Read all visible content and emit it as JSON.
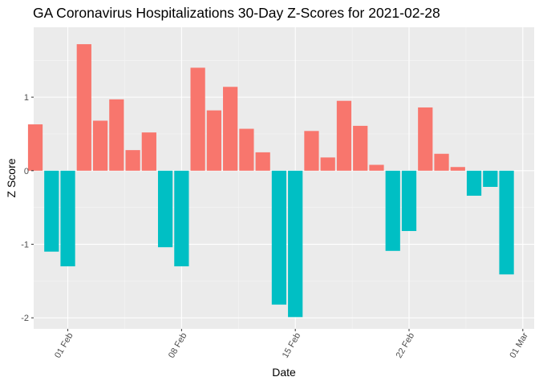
{
  "chart_data": {
    "type": "bar",
    "title": "GA Coronavirus Hospitalizations 30-Day Z-Scores for 2021-02-28",
    "xlabel": "Date",
    "ylabel": "Z Score",
    "ylim": [
      -2.15,
      1.95
    ],
    "yticks": [
      -2,
      -1,
      0,
      1
    ],
    "xticks": [
      {
        "label": "01 Feb",
        "day": 2
      },
      {
        "label": "08 Feb",
        "day": 9
      },
      {
        "label": "15 Feb",
        "day": 16
      },
      {
        "label": "22 Feb",
        "day": 23
      },
      {
        "label": "01 Mar",
        "day": 30
      }
    ],
    "xlim": [
      -0.1,
      30.7
    ],
    "grid": true,
    "legend": "none",
    "colors": {
      "positive": "#F8766D",
      "negative": "#00BFC4",
      "panel": "#EBEBEB",
      "grid_major": "#FFFFFF",
      "grid_minor": "#F5F5F5"
    },
    "dates": [
      "2021-01-30",
      "2021-01-31",
      "2021-02-01",
      "2021-02-02",
      "2021-02-03",
      "2021-02-04",
      "2021-02-05",
      "2021-02-06",
      "2021-02-07",
      "2021-02-08",
      "2021-02-09",
      "2021-02-10",
      "2021-02-11",
      "2021-02-12",
      "2021-02-13",
      "2021-02-14",
      "2021-02-15",
      "2021-02-16",
      "2021-02-17",
      "2021-02-18",
      "2021-02-19",
      "2021-02-20",
      "2021-02-21",
      "2021-02-22",
      "2021-02-23",
      "2021-02-24",
      "2021-02-25",
      "2021-02-26",
      "2021-02-27",
      "2021-02-28"
    ],
    "values": [
      0.63,
      -1.1,
      -1.3,
      1.72,
      0.68,
      0.97,
      0.28,
      0.52,
      -1.04,
      -1.3,
      1.4,
      0.82,
      1.14,
      0.57,
      0.25,
      -1.82,
      -1.99,
      0.54,
      0.18,
      0.95,
      0.61,
      0.08,
      -1.09,
      -0.82,
      0.86,
      0.23,
      0.05,
      -0.34,
      -0.22,
      -1.41
    ]
  }
}
